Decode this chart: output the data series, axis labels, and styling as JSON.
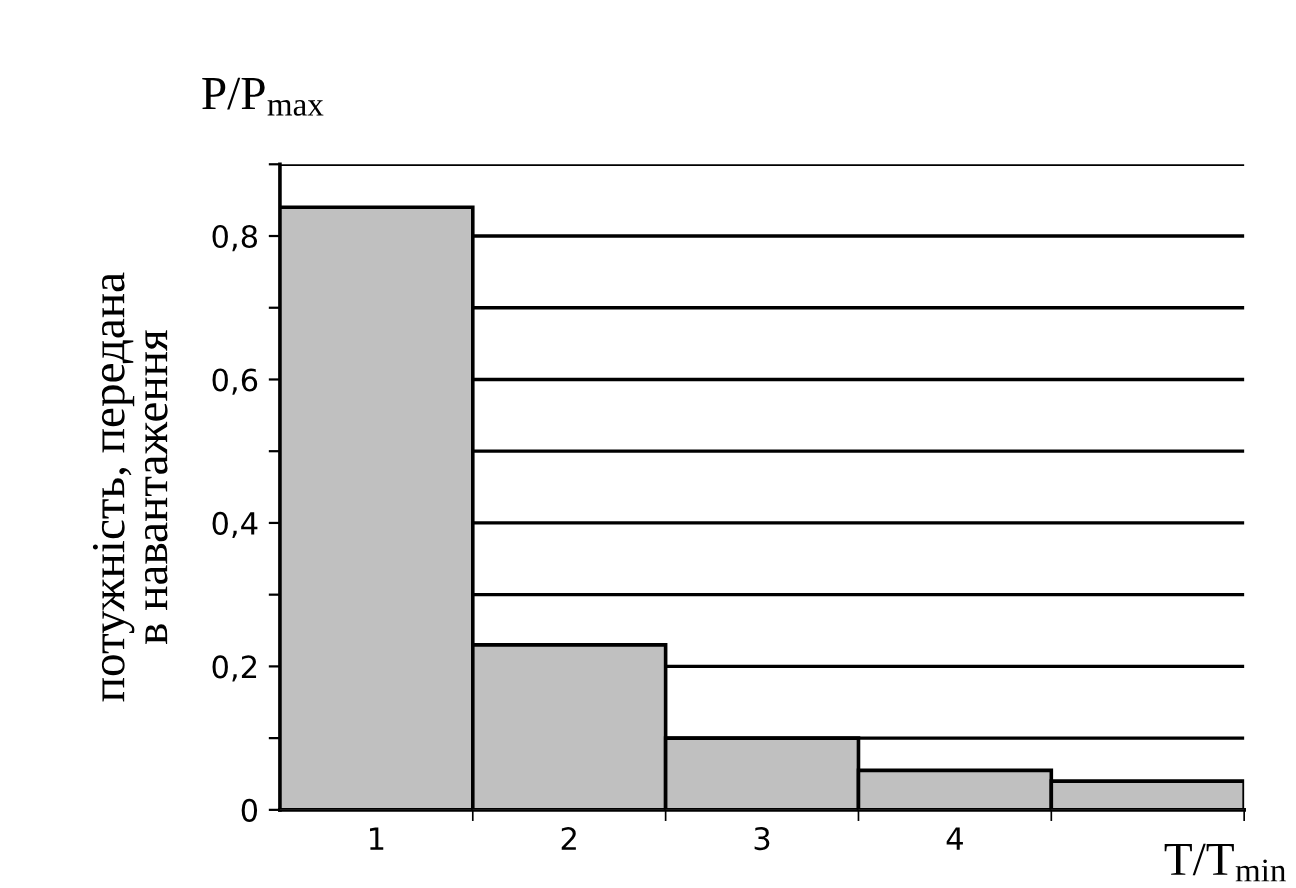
{
  "chart_data": {
    "type": "bar",
    "categories": [
      "1",
      "2",
      "3",
      "4",
      null
    ],
    "values": [
      0.84,
      0.23,
      0.1,
      0.055,
      0.04
    ],
    "color": "#c0c0c0",
    "ylabel": "потужність, передана\nв навантаження",
    "xlabel": "T/T$_{min}$",
    "annotations": [
      "P/P$_{max}$"
    ],
    "ylim": [
      0,
      0.9
    ],
    "yticks": [
      0,
      {
        "value": 0.1,
        "label": null
      },
      {
        "value": 0.2,
        "label": "0,2"
      },
      {
        "value": 0.3,
        "label": null
      },
      {
        "value": 0.4,
        "label": "0,4"
      },
      {
        "value": 0.5,
        "label": null
      },
      {
        "value": 0.6,
        "label": "0,6"
      },
      {
        "value": 0.7,
        "label": null
      },
      {
        "value": 0.8,
        "label": "0,8"
      },
      {
        "value": 0.9,
        "label": null
      }
    ],
    "grid": "y"
  }
}
